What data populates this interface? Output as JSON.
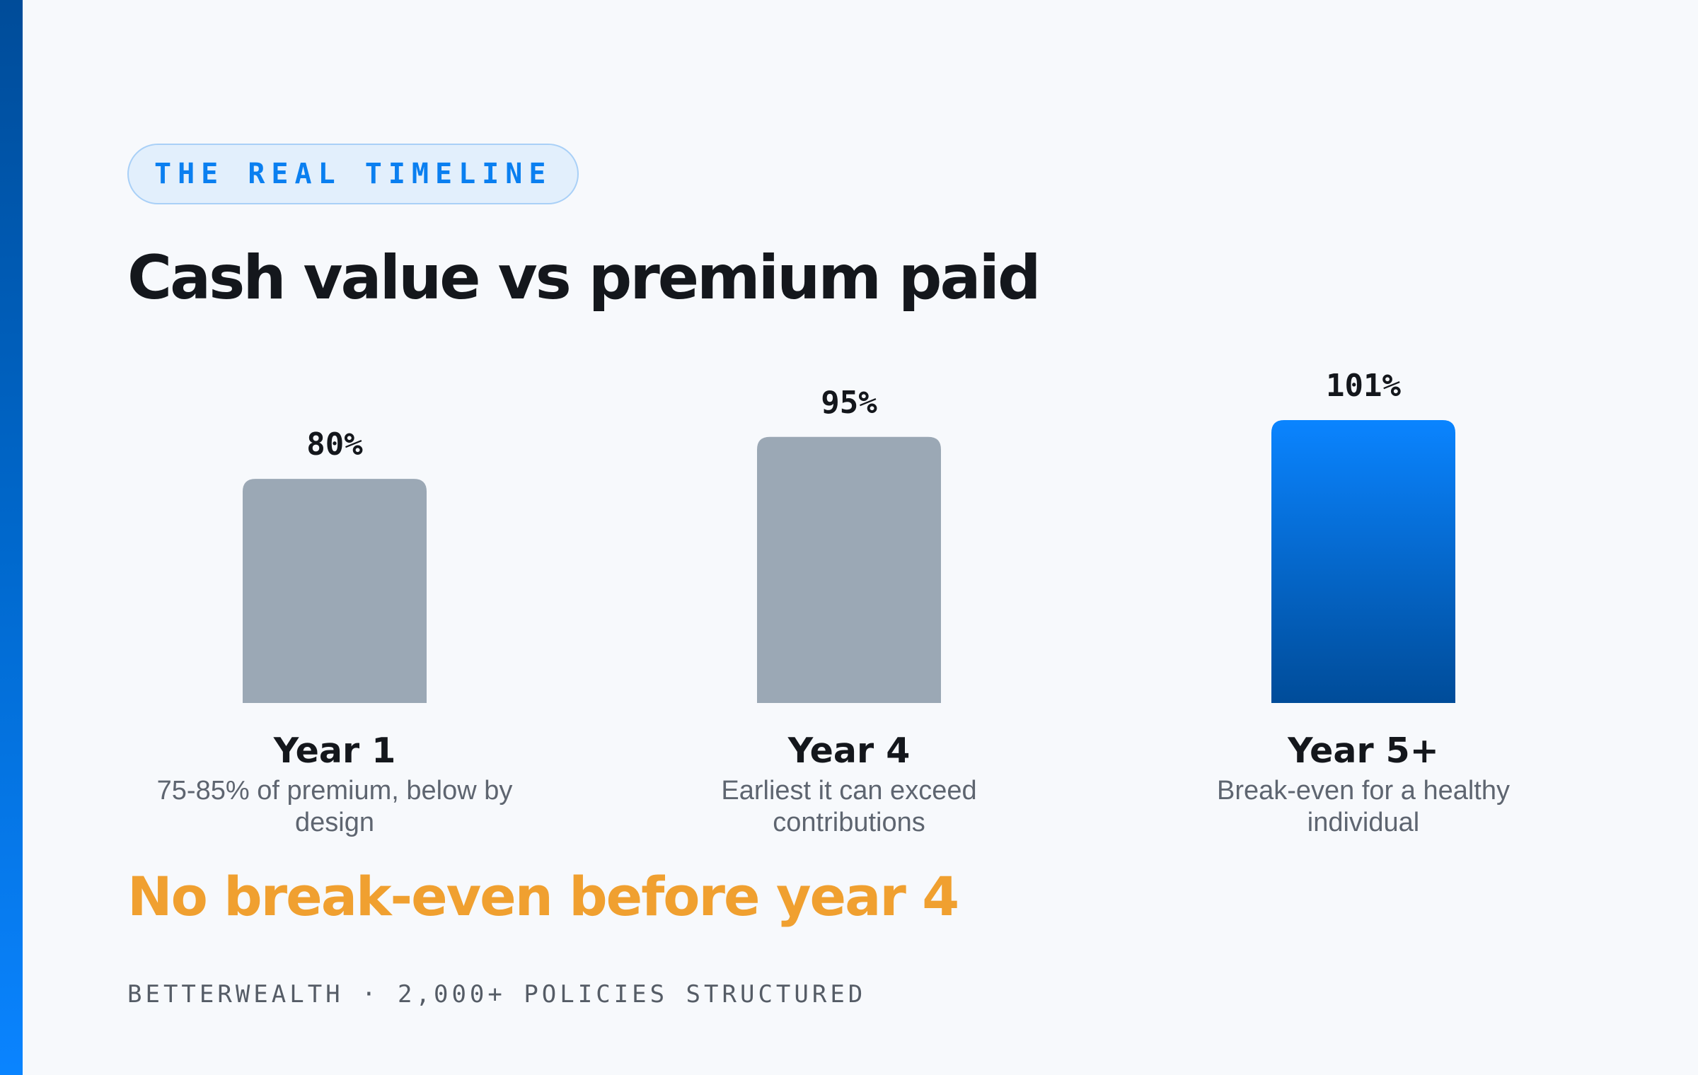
{
  "eyebrow": "THE REAL TIMELINE",
  "title": "Cash value vs premium paid",
  "chart_data": {
    "type": "bar",
    "title": "Cash value vs premium paid",
    "categories": [
      "Year 1",
      "Year 4",
      "Year 5+"
    ],
    "values": [
      80,
      95,
      101
    ],
    "value_labels": [
      "80%",
      "95%",
      "101%"
    ],
    "descriptions": [
      "75-85% of premium, below by design",
      "Earliest it can exceed contributions",
      "Break-even for a healthy individual"
    ],
    "unit": "%",
    "ylim": [
      0,
      101
    ],
    "grid": false,
    "highlight_index": 2,
    "colors": {
      "default_bar": "#9ba8b5",
      "highlight_top": "#0a84ff",
      "highlight_bottom": "#004c99"
    }
  },
  "callout": "No break-even before year 4",
  "footer": "BETTERWEALTH · 2,000+ POLICIES STRUCTURED",
  "colors": {
    "accent": "#0a7ff0",
    "callout": "#f0a030",
    "background": "#f7f9fc"
  }
}
